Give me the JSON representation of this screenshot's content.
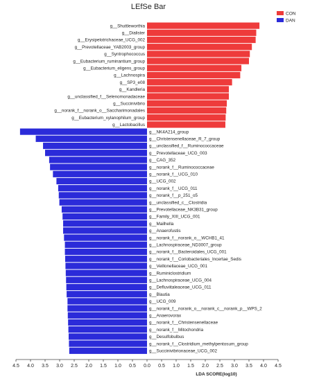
{
  "chart_data": {
    "type": "bar",
    "orientation": "horizontal-diverging",
    "title": "LEfSe Bar",
    "xlabel": "LDA SCORE(log10)",
    "ylabel": "",
    "xlim": [
      -4.5,
      4.5
    ],
    "x_ticks": [
      "4.5",
      "4.0",
      "3.5",
      "3.0",
      "2.5",
      "2.0",
      "1.5",
      "1.0",
      "0.5",
      "0.0",
      "0.5",
      "1.0",
      "1.5",
      "2.0",
      "2.5",
      "3.0",
      "3.5",
      "4.0",
      "4.5"
    ],
    "legend_position": "top-right",
    "series": [
      {
        "name": "CON",
        "color": "#ee3b3b",
        "direction": "right",
        "categories": [
          "g__Shuttleworthia",
          "g__Dialister",
          "g__Erysipelotrichaceae_UCG_002",
          "g__Prevotellaceae_YAB2003_group",
          "g__Syntrophococcus",
          "g__Eubacterium_ruminantium_group",
          "g__Eubacterium_eligens_group",
          "g__Lachnospira",
          "g__SP3_e08",
          "g__Kandleria",
          "g__unclassified_f__Selenomonadaceae",
          "g__Succinivibrio",
          "g__norank_f__norank_o__Saccharimonadales",
          "g__Eubacterium_xylanophilum_group",
          "g__Lactobacillus"
        ],
        "values": [
          3.86,
          3.75,
          3.73,
          3.6,
          3.53,
          3.5,
          3.24,
          3.2,
          2.92,
          2.81,
          2.81,
          2.74,
          2.72,
          2.7,
          2.69
        ]
      },
      {
        "name": "DAN",
        "color": "#2b2bd9",
        "direction": "left",
        "categories": [
          "g__NK4A214_group",
          "g__Christensenellaceae_R_7_group",
          "g__unclassified_f__Ruminococcaceae",
          "g__Prevotellaceae_UCG_003",
          "g__CAG_352",
          "g__norank_f__Ruminococcaceae",
          "g__norank_f__UCG_010",
          "g__UCG_002",
          "g__norank_f__UCG_011",
          "g__norank_f__p_251_o5",
          "g__unclassified_c__Clostridia",
          "g__Prevotellaceae_NK3B31_group",
          "g__Family_XIII_UCG_001",
          "g__Mailhella",
          "g__Anaerofustis",
          "g__norank_f__norank_o__WCHB1_41",
          "g__Lachnospiraceae_ND3007_group",
          "g__norank_f__Bacteroidales_UCG_001",
          "g__norank_f__Coriobacteriales_Incertae_Sedis",
          "g__Veillonellaceae_UCG_001",
          "g__Ruminiclostridium",
          "g__Lachnospiraceae_UCG_004",
          "g__Defluviitaleaceae_UCG_011",
          "g__Blautia",
          "g__UCG_009",
          "g__norank_f__norank_o__norank_c__norank_p__WPS_2",
          "g__Anaerovorax",
          "g__norank_f__Christensenellaceae",
          "g__norank_f__Mitochondria",
          "g__Desulfobulbus",
          "g__norank_f__Clostridium_methylpentosum_group",
          "g__Succinivibrionaceae_UCG_002"
        ],
        "values": [
          4.36,
          3.82,
          3.57,
          3.5,
          3.36,
          3.33,
          3.23,
          3.11,
          3.05,
          3.03,
          3.01,
          2.93,
          2.9,
          2.88,
          2.88,
          2.85,
          2.82,
          2.82,
          2.81,
          2.8,
          2.79,
          2.78,
          2.77,
          2.76,
          2.73,
          2.73,
          2.72,
          2.71,
          2.7,
          2.69,
          2.68,
          2.67
        ]
      }
    ]
  }
}
